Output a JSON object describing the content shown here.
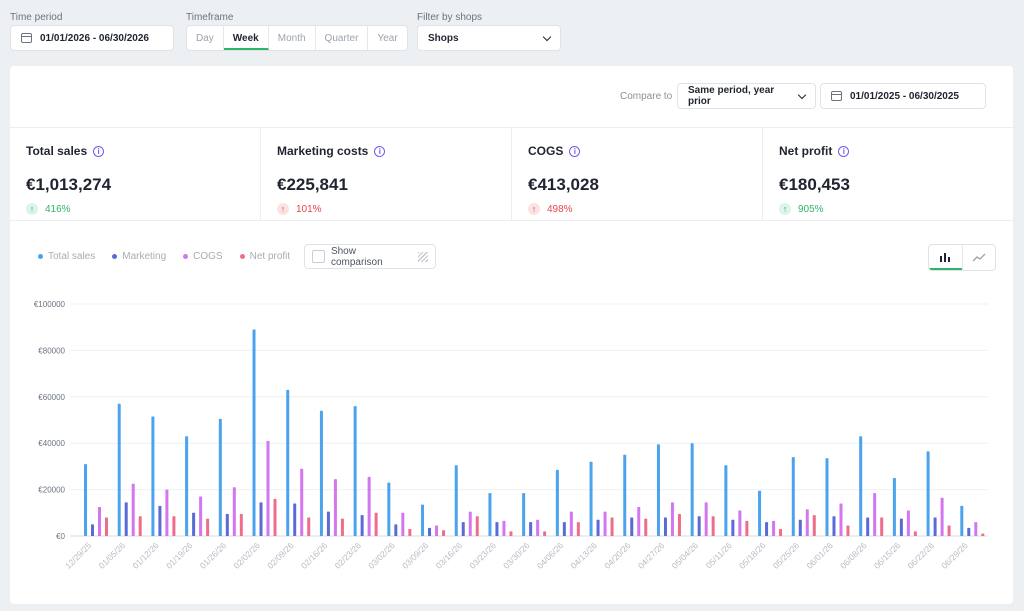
{
  "filters": {
    "time_period_label": "Time period",
    "time_period_value": "01/01/2026 - 06/30/2026",
    "timeframe_label": "Timeframe",
    "timeframe_options": [
      "Day",
      "Week",
      "Month",
      "Quarter",
      "Year"
    ],
    "timeframe_selected": "Week",
    "shops_label": "Filter by shops",
    "shops_value": "Shops"
  },
  "compare": {
    "label": "Compare to",
    "mode": "Same period, year prior",
    "date_range": "01/01/2025 - 06/30/2025"
  },
  "kpis": [
    {
      "title": "Total sales",
      "value": "€1,013,274",
      "change": "416%",
      "direction": "up"
    },
    {
      "title": "Marketing costs",
      "value": "€225,841",
      "change": "101%",
      "direction": "up-negative"
    },
    {
      "title": "COGS",
      "value": "€413,028",
      "change": "498%",
      "direction": "up-negative"
    },
    {
      "title": "Net profit",
      "value": "€180,453",
      "change": "905%",
      "direction": "up"
    }
  ],
  "legend": {
    "items": [
      {
        "label": "Total sales",
        "color": "#4ba3ee"
      },
      {
        "label": "Marketing",
        "color": "#5a6ad6"
      },
      {
        "label": "COGS",
        "color": "#d277f0"
      },
      {
        "label": "Net profit",
        "color": "#ee6e8a"
      }
    ],
    "show_comparison": "Show comparison"
  },
  "view_icons": [
    "bar-chart-icon",
    "line-chart-icon"
  ],
  "chart_data": {
    "type": "bar",
    "y_ticks": [
      "€0",
      "€20000",
      "€40000",
      "€60000",
      "€80000",
      "€100000"
    ],
    "ylim": [
      0,
      100000
    ],
    "categories": [
      "12/29/25",
      "01/05/26",
      "01/12/26",
      "01/19/26",
      "01/26/26",
      "02/02/26",
      "02/09/26",
      "02/16/26",
      "02/23/26",
      "03/02/26",
      "03/09/26",
      "03/16/26",
      "03/23/26",
      "03/30/26",
      "04/06/26",
      "04/13/26",
      "04/20/26",
      "04/27/26",
      "05/04/26",
      "05/11/26",
      "05/18/26",
      "05/25/26",
      "06/01/26",
      "06/08/26",
      "06/15/26",
      "06/22/26",
      "06/29/26"
    ],
    "series": [
      {
        "name": "Total sales",
        "color": "#4ba3ee",
        "values": [
          31000,
          57000,
          51500,
          43000,
          50500,
          89000,
          63000,
          54000,
          56000,
          23000,
          13500,
          30500,
          18500,
          18500,
          28500,
          32000,
          35000,
          39500,
          40000,
          30500,
          19500,
          34000,
          33500,
          43000,
          25000,
          36500,
          13000
        ]
      },
      {
        "name": "Marketing",
        "color": "#5a6ad6",
        "values": [
          5000,
          14500,
          13000,
          10000,
          9500,
          14500,
          14000,
          10500,
          9000,
          5000,
          3500,
          6000,
          6000,
          6000,
          6000,
          7000,
          8000,
          8000,
          8500,
          7000,
          6000,
          7000,
          8500,
          8000,
          7500,
          8000,
          3500
        ]
      },
      {
        "name": "COGS",
        "color": "#d277f0",
        "values": [
          12500,
          22500,
          20000,
          17000,
          21000,
          41000,
          29000,
          24500,
          25500,
          10000,
          4500,
          10500,
          6500,
          7000,
          10500,
          10500,
          12500,
          14500,
          14500,
          11000,
          6500,
          11500,
          14000,
          18500,
          11000,
          16500,
          6000
        ]
      },
      {
        "name": "Net profit",
        "color": "#ee6e8a",
        "values": [
          8000,
          8500,
          8500,
          7500,
          9500,
          16000,
          8000,
          7500,
          10000,
          3000,
          2500,
          8500,
          2000,
          2000,
          6000,
          8000,
          7500,
          9500,
          8500,
          6500,
          3000,
          9000,
          4500,
          8000,
          2000,
          4500,
          1000
        ]
      }
    ]
  }
}
